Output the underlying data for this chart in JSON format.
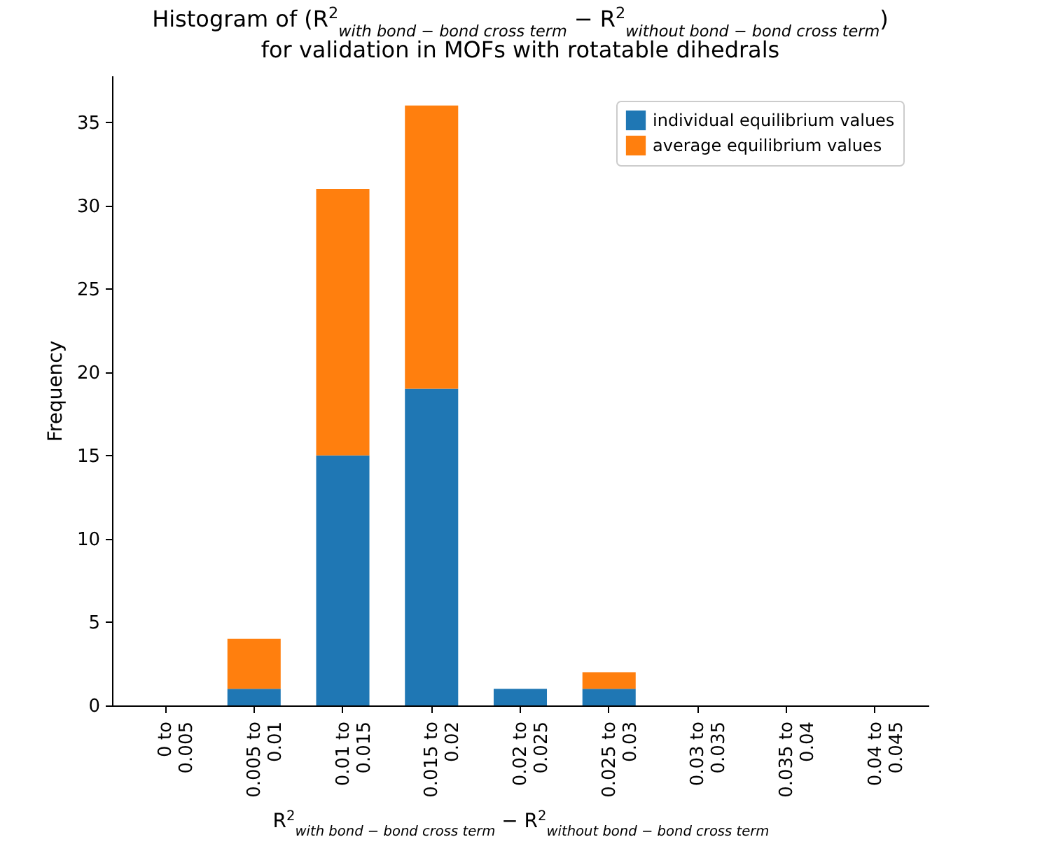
{
  "chart_data": {
    "type": "bar",
    "stacked": true,
    "title": [
      "Histogram of (R$^{2}$$_{with bond − bond cross term}$ − R$^{2}$$_{without bond − bond cross term}$)",
      "for validation in MOFs with rotatable dihedrals"
    ],
    "xlabel": "R$^{2}$$_{with bond − bond cross term}$ − R$^{2}$$_{without bond − bond cross term}$",
    "ylabel": "Frequency",
    "categories": [
      "0 to\n0.005",
      "0.005 to\n0.01",
      "0.01 to\n0.015",
      "0.015 to\n0.02",
      "0.02 to\n0.025",
      "0.025 to\n0.03",
      "0.03 to\n0.035",
      "0.035 to\n0.04",
      "0.04 to\n0.045"
    ],
    "series": [
      {
        "name": "individual equilibrium values",
        "color": "#1f77b4",
        "values": [
          0,
          1,
          15,
          19,
          1,
          1,
          0,
          0,
          0
        ]
      },
      {
        "name": "average equilibrium values",
        "color": "#ff7f0e",
        "values": [
          0,
          3,
          16,
          17,
          0,
          1,
          0,
          0,
          0
        ]
      }
    ],
    "ylim": [
      0,
      37.8
    ],
    "yticks": [
      0,
      5,
      10,
      15,
      20,
      25,
      30,
      35
    ],
    "grid": false,
    "legend": "top right"
  }
}
